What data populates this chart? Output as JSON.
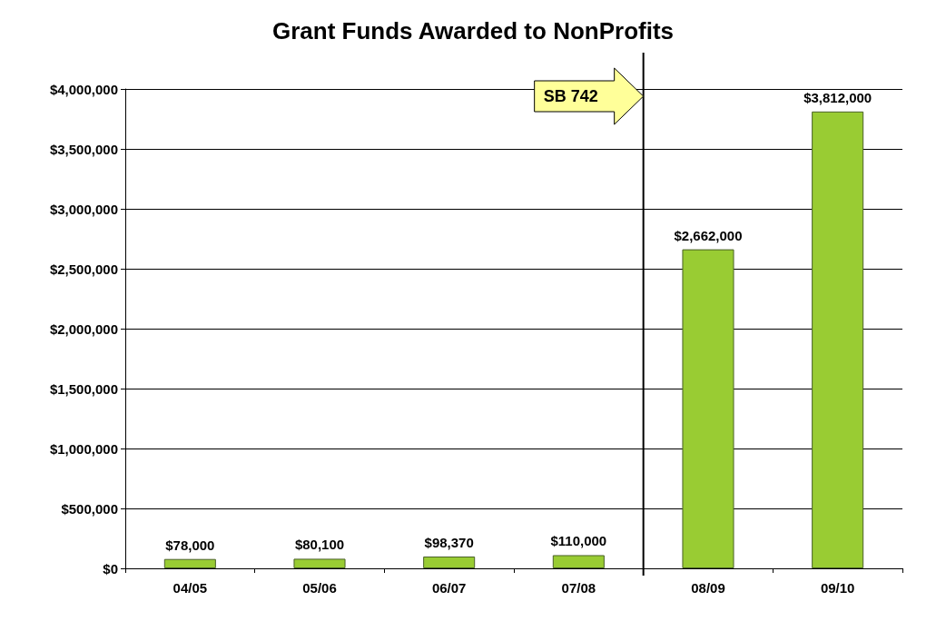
{
  "chart_data": {
    "type": "bar",
    "title": "Grant Funds Awarded to NonProfits",
    "categories": [
      "04/05",
      "05/06",
      "06/07",
      "07/08",
      "08/09",
      "09/10"
    ],
    "values": [
      78000,
      80100,
      98370,
      110000,
      2662000,
      3812000
    ],
    "value_labels": [
      "$78,000",
      "$80,100",
      "$98,370",
      "$110,000",
      "$2,662,000",
      "$3,812,000"
    ],
    "color": "#99cc33",
    "ylim": [
      0,
      4000000
    ],
    "yticks": [
      {
        "value": 0,
        "label": "$0"
      },
      {
        "value": 500000,
        "label": "$500,000"
      },
      {
        "value": 1000000,
        "label": "$1,000,000"
      },
      {
        "value": 1500000,
        "label": "$1,500,000"
      },
      {
        "value": 2000000,
        "label": "$2,000,000"
      },
      {
        "value": 2500000,
        "label": "$2,500,000"
      },
      {
        "value": 3000000,
        "label": "$3,000,000"
      },
      {
        "value": 3500000,
        "label": "$3,500,000"
      },
      {
        "value": 4000000,
        "label": "$4,000,000"
      }
    ],
    "ref_lines": [
      {
        "axis": "x",
        "value": "08/09",
        "label": "SB 742",
        "color": "#000000"
      }
    ],
    "grid": "y"
  }
}
